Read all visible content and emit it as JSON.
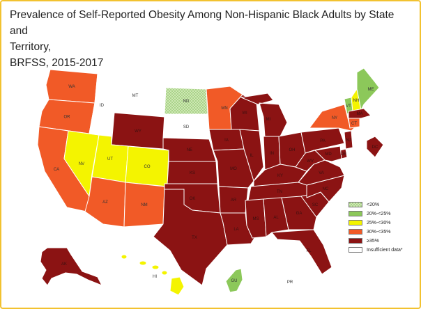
{
  "title_lines": [
    "Prevalence of Self-Reported Obesity Among Non-Hispanic Black Adults by State and",
    "Territory,",
    "BRFSS, 2015-2017"
  ],
  "colors": {
    "lt20": "#cfe8b4",
    "c20_25": "#8cc85a",
    "c25_30": "#f4f400",
    "c30_35": "#f15a27",
    "ge35": "#8b1313",
    "insufficient": "#ffffff",
    "boundary": "#ffffff"
  },
  "legend": [
    {
      "label": "<20%",
      "class": "lt20"
    },
    {
      "label": "20%-<25%",
      "class": "c20_25"
    },
    {
      "label": "25%-<30%",
      "class": "c25_30"
    },
    {
      "label": "30%-<35%",
      "class": "c30_35"
    },
    {
      "label": "≥35%",
      "class": "ge35"
    },
    {
      "label": "Insufficient data*",
      "class": "insufficient"
    }
  ],
  "states": [
    {
      "abbr": "WA",
      "class": "c30_35"
    },
    {
      "abbr": "OR",
      "class": "c30_35"
    },
    {
      "abbr": "CA",
      "class": "c30_35"
    },
    {
      "abbr": "NV",
      "class": "c25_30"
    },
    {
      "abbr": "ID",
      "class": "insufficient"
    },
    {
      "abbr": "MT",
      "class": "insufficient"
    },
    {
      "abbr": "WY",
      "class": "ge35"
    },
    {
      "abbr": "UT",
      "class": "c25_30"
    },
    {
      "abbr": "CO",
      "class": "c25_30"
    },
    {
      "abbr": "AZ",
      "class": "c30_35"
    },
    {
      "abbr": "NM",
      "class": "c30_35"
    },
    {
      "abbr": "ND",
      "class": "lt20"
    },
    {
      "abbr": "SD",
      "class": "insufficient"
    },
    {
      "abbr": "NE",
      "class": "ge35"
    },
    {
      "abbr": "KS",
      "class": "ge35"
    },
    {
      "abbr": "OK",
      "class": "ge35"
    },
    {
      "abbr": "TX",
      "class": "ge35"
    },
    {
      "abbr": "MN",
      "class": "c30_35"
    },
    {
      "abbr": "IA",
      "class": "ge35"
    },
    {
      "abbr": "MO",
      "class": "ge35"
    },
    {
      "abbr": "AR",
      "class": "ge35"
    },
    {
      "abbr": "LA",
      "class": "ge35"
    },
    {
      "abbr": "WI",
      "class": "ge35"
    },
    {
      "abbr": "IL",
      "class": "ge35"
    },
    {
      "abbr": "MS",
      "class": "ge35"
    },
    {
      "abbr": "MI",
      "class": "ge35"
    },
    {
      "abbr": "IN",
      "class": "ge35"
    },
    {
      "abbr": "KY",
      "class": "ge35"
    },
    {
      "abbr": "TN",
      "class": "ge35"
    },
    {
      "abbr": "AL",
      "class": "ge35"
    },
    {
      "abbr": "OH",
      "class": "ge35"
    },
    {
      "abbr": "GA",
      "class": "ge35"
    },
    {
      "abbr": "FL",
      "class": "ge35"
    },
    {
      "abbr": "SC",
      "class": "ge35"
    },
    {
      "abbr": "NC",
      "class": "ge35"
    },
    {
      "abbr": "VA",
      "class": "ge35"
    },
    {
      "abbr": "WV",
      "class": "ge35"
    },
    {
      "abbr": "PA",
      "class": "ge35"
    },
    {
      "abbr": "NY",
      "class": "c30_35"
    },
    {
      "abbr": "VT",
      "class": "c20_25"
    },
    {
      "abbr": "NH",
      "class": "c25_30"
    },
    {
      "abbr": "ME",
      "class": "c20_25"
    },
    {
      "abbr": "MA",
      "class": "ge35"
    },
    {
      "abbr": "CT",
      "class": "c30_35"
    },
    {
      "abbr": "NJ",
      "class": "ge35"
    },
    {
      "abbr": "DE",
      "class": "ge35"
    },
    {
      "abbr": "MD",
      "class": "ge35"
    },
    {
      "abbr": "DC",
      "class": "ge35"
    },
    {
      "abbr": "AK",
      "class": "ge35"
    },
    {
      "abbr": "HI",
      "class": "c25_30"
    },
    {
      "abbr": "GU",
      "class": "c20_25"
    },
    {
      "abbr": "PR",
      "class": "insufficient"
    }
  ]
}
